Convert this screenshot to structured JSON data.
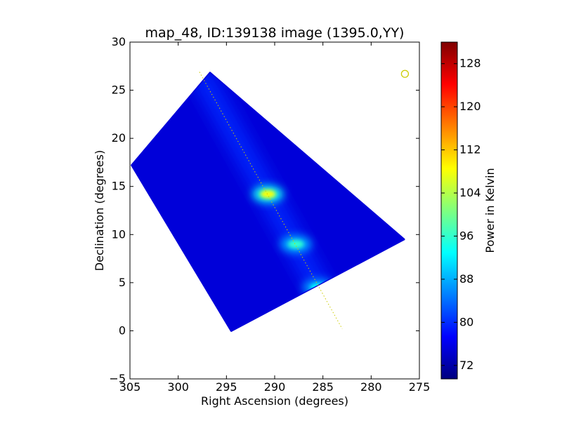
{
  "chart_data": {
    "type": "heatmap",
    "title": "map_48, ID:139138 image (1395.0,YY)",
    "xlabel": "Right Ascension (degrees)",
    "ylabel": "Declination (degrees)",
    "xlim": [
      305,
      275
    ],
    "ylim": [
      -5,
      30
    ],
    "x_ticks": [
      305,
      300,
      295,
      290,
      285,
      280,
      275
    ],
    "y_ticks": [
      -5,
      0,
      5,
      10,
      15,
      20,
      25,
      30
    ],
    "colorbar": {
      "label": "Power in Kelvin",
      "colormap": "jet",
      "range": [
        69.5,
        132
      ],
      "ticks": [
        72,
        80,
        88,
        96,
        104,
        112,
        120,
        128
      ]
    },
    "map_footprint_corners": [
      [
        296.7,
        26.8
      ],
      [
        276.6,
        9.5
      ],
      [
        294.5,
        0.0
      ],
      [
        304.8,
        17.2
      ]
    ],
    "bright_features": [
      {
        "ra": 290.7,
        "dec": 14.2,
        "kelvin": 108
      },
      {
        "ra": 287.8,
        "dec": 9.0,
        "kelvin": 96
      },
      {
        "ra": 285.5,
        "dec": 4.5,
        "kelvin": 93
      }
    ],
    "galactic_plane_line": {
      "color": "#cccc00",
      "points": [
        [
          297.8,
          26.9
        ],
        [
          283.0,
          0.2
        ]
      ]
    },
    "marker": {
      "ra": 276.5,
      "dec": 26.7,
      "shape": "circle",
      "color": "#cccc00"
    },
    "background_kelvin": 75,
    "grid": false
  }
}
